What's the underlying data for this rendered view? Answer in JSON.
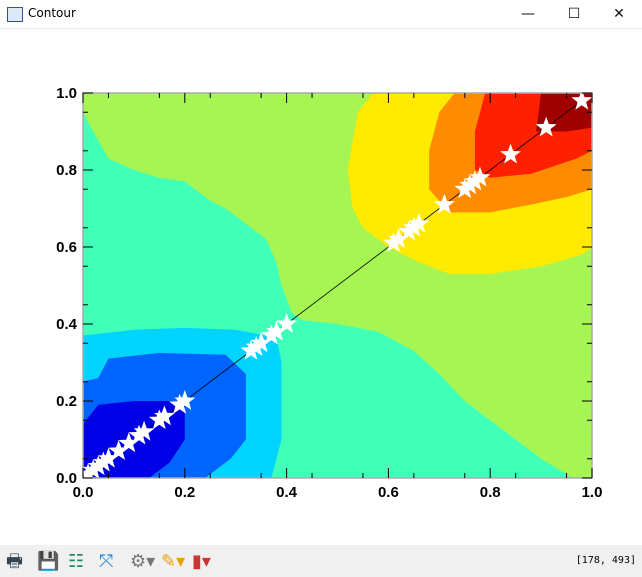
{
  "window": {
    "title": "Contour",
    "minimize": "—",
    "maximize": "☐",
    "close": "✕"
  },
  "toolbar": {
    "items": [
      {
        "name": "print-icon",
        "glyph": "🖶"
      },
      {
        "name": "save-icon",
        "glyph": "💾"
      },
      {
        "name": "properties-icon",
        "glyph": "☷"
      },
      {
        "name": "reset-zoom-icon",
        "glyph": "⤧"
      },
      {
        "name": "settings-icon",
        "glyph": "⚙▾"
      },
      {
        "name": "pencil-icon",
        "glyph": "✎▾"
      },
      {
        "name": "chart-type-icon",
        "glyph": "▮▾"
      }
    ],
    "coords": "[178, 493]"
  },
  "chart_data": {
    "type": "contour",
    "xlim": [
      0,
      1
    ],
    "ylim": [
      0,
      1
    ],
    "xticks": [
      "0.0",
      "0.2",
      "0.4",
      "0.6",
      "0.8",
      "1.0"
    ],
    "yticks": [
      "0.0",
      "0.2",
      "0.4",
      "0.6",
      "0.8",
      "1.0"
    ],
    "levels": [
      {
        "color": "#a6f552",
        "poly": [
          [
            0,
            0
          ],
          [
            0,
            1
          ],
          [
            1,
            1
          ],
          [
            1,
            0
          ]
        ]
      },
      {
        "color": "#40ffb8",
        "poly": [
          [
            0,
            0
          ],
          [
            0,
            0.95
          ],
          [
            0.02,
            0.9
          ],
          [
            0.05,
            0.83
          ],
          [
            0.1,
            0.8
          ],
          [
            0.15,
            0.78
          ],
          [
            0.2,
            0.77
          ],
          [
            0.25,
            0.72
          ],
          [
            0.28,
            0.7
          ],
          [
            0.32,
            0.66
          ],
          [
            0.36,
            0.62
          ],
          [
            0.38,
            0.56
          ],
          [
            0.39,
            0.5
          ],
          [
            0.41,
            0.43
          ],
          [
            0.43,
            0.41
          ],
          [
            0.5,
            0.4
          ],
          [
            0.58,
            0.38
          ],
          [
            0.65,
            0.33
          ],
          [
            0.7,
            0.27
          ],
          [
            0.75,
            0.2
          ],
          [
            0.8,
            0.15
          ],
          [
            0.85,
            0.1
          ],
          [
            0.9,
            0.05
          ],
          [
            0.95,
            0.01
          ],
          [
            0.96,
            0
          ]
        ]
      },
      {
        "color": "#00d4ff",
        "poly": [
          [
            0,
            0
          ],
          [
            0,
            0.37
          ],
          [
            0.1,
            0.385
          ],
          [
            0.2,
            0.39
          ],
          [
            0.3,
            0.385
          ],
          [
            0.38,
            0.365
          ],
          [
            0.39,
            0.3
          ],
          [
            0.39,
            0.1
          ],
          [
            0.37,
            0
          ]
        ]
      },
      {
        "color": "#0064ff",
        "poly": [
          [
            0,
            0
          ],
          [
            0,
            0.25
          ],
          [
            0.03,
            0.26
          ],
          [
            0.05,
            0.31
          ],
          [
            0.15,
            0.325
          ],
          [
            0.28,
            0.32
          ],
          [
            0.32,
            0.27
          ],
          [
            0.32,
            0.1
          ],
          [
            0.29,
            0.05
          ],
          [
            0.24,
            0
          ]
        ]
      },
      {
        "color": "#0000e6",
        "poly": [
          [
            0,
            0
          ],
          [
            0,
            0.14
          ],
          [
            0.03,
            0.19
          ],
          [
            0.1,
            0.2
          ],
          [
            0.2,
            0.2
          ],
          [
            0.2,
            0.1
          ],
          [
            0.17,
            0.04
          ],
          [
            0.14,
            0.01
          ],
          [
            0.13,
            0
          ]
        ]
      },
      {
        "color": "#ffea00",
        "poly": [
          [
            0.57,
            1
          ],
          [
            0.54,
            0.95
          ],
          [
            0.52,
            0.8
          ],
          [
            0.53,
            0.7
          ],
          [
            0.55,
            0.65
          ],
          [
            0.6,
            0.6
          ],
          [
            0.66,
            0.56
          ],
          [
            0.72,
            0.53
          ],
          [
            0.8,
            0.53
          ],
          [
            0.9,
            0.55
          ],
          [
            0.98,
            0.58
          ],
          [
            1,
            0.6
          ],
          [
            1,
            1
          ]
        ]
      },
      {
        "color": "#ff8c00",
        "poly": [
          [
            0.73,
            1
          ],
          [
            0.7,
            0.95
          ],
          [
            0.69,
            0.9
          ],
          [
            0.68,
            0.85
          ],
          [
            0.68,
            0.75
          ],
          [
            0.72,
            0.69
          ],
          [
            0.8,
            0.69
          ],
          [
            0.88,
            0.71
          ],
          [
            0.95,
            0.73
          ],
          [
            1,
            0.75
          ],
          [
            1,
            1
          ]
        ]
      },
      {
        "color": "#ff2000",
        "poly": [
          [
            0.79,
            1
          ],
          [
            0.77,
            0.9
          ],
          [
            0.77,
            0.8
          ],
          [
            0.8,
            0.78
          ],
          [
            0.88,
            0.79
          ],
          [
            0.97,
            0.83
          ],
          [
            1,
            0.85
          ],
          [
            1,
            1
          ]
        ]
      },
      {
        "color": "#a00000",
        "poly": [
          [
            0.9,
            1
          ],
          [
            0.89,
            0.9
          ],
          [
            0.95,
            0.9
          ],
          [
            1,
            0.91
          ],
          [
            1,
            1
          ]
        ]
      }
    ],
    "line": [
      [
        0,
        0
      ],
      [
        0.98,
        0.98
      ]
    ],
    "points": [
      0.01,
      0.02,
      0.03,
      0.04,
      0.05,
      0.07,
      0.09,
      0.11,
      0.12,
      0.15,
      0.16,
      0.19,
      0.2,
      0.33,
      0.34,
      0.35,
      0.37,
      0.38,
      0.4,
      0.61,
      0.62,
      0.64,
      0.65,
      0.66,
      0.71,
      0.75,
      0.76,
      0.77,
      0.78,
      0.84,
      0.91,
      0.98
    ],
    "marker": "star",
    "marker_color": "#ffffff"
  }
}
